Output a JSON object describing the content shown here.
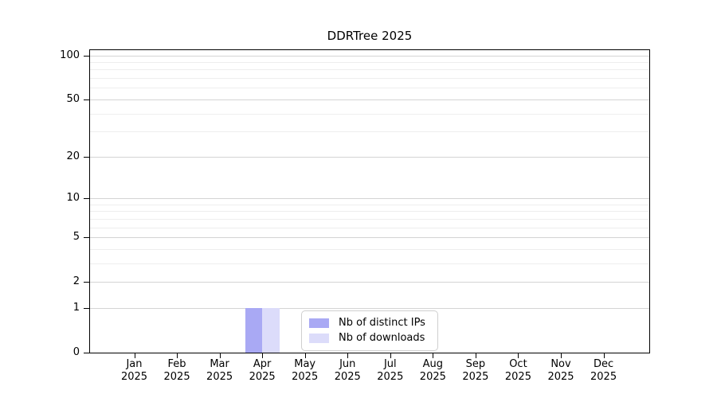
{
  "chart_data": {
    "type": "bar",
    "title": "DDRTree 2025",
    "categories": [
      {
        "month": "Jan",
        "year": "2025"
      },
      {
        "month": "Feb",
        "year": "2025"
      },
      {
        "month": "Mar",
        "year": "2025"
      },
      {
        "month": "Apr",
        "year": "2025"
      },
      {
        "month": "May",
        "year": "2025"
      },
      {
        "month": "Jun",
        "year": "2025"
      },
      {
        "month": "Jul",
        "year": "2025"
      },
      {
        "month": "Aug",
        "year": "2025"
      },
      {
        "month": "Sep",
        "year": "2025"
      },
      {
        "month": "Oct",
        "year": "2025"
      },
      {
        "month": "Nov",
        "year": "2025"
      },
      {
        "month": "Dec",
        "year": "2025"
      }
    ],
    "series": [
      {
        "name": "Nb of distinct IPs",
        "color": "#a9a9f4",
        "values": [
          0,
          0,
          0,
          1,
          0,
          0,
          0,
          0,
          0,
          0,
          0,
          0
        ]
      },
      {
        "name": "Nb of downloads",
        "color": "#dcdcfa",
        "values": [
          0,
          0,
          0,
          1,
          0,
          0,
          0,
          0,
          0,
          0,
          0,
          0
        ]
      }
    ],
    "y_axis": {
      "scale": "log1p",
      "ticks": [
        0,
        1,
        2,
        5,
        10,
        20,
        50,
        100
      ],
      "minor_gridlines": [
        3,
        4,
        6,
        7,
        8,
        9,
        30,
        40,
        60,
        70,
        80,
        90
      ],
      "max": 110
    },
    "legend_position": "bottom-center",
    "grid": "on",
    "colors": {
      "grid_major": "#d4d4d4",
      "grid_minor": "#eeeeee",
      "axis": "#000000",
      "background": "#ffffff",
      "text": "#000000"
    }
  }
}
